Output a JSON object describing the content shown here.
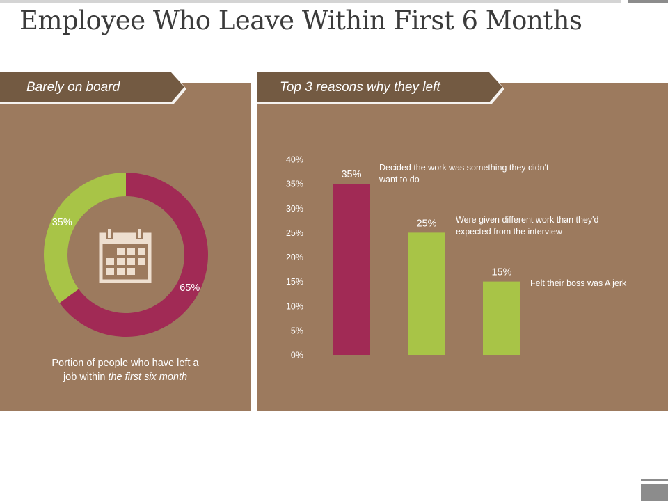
{
  "page": {
    "title": "Employee Who Leave Within First 6 Months"
  },
  "left_panel": {
    "banner": "Barely on board",
    "caption_line1": "Portion of people who have left a",
    "caption_line2_plain": "job within ",
    "caption_line2_italic": "the first six month",
    "icon": "calendar-icon"
  },
  "right_panel": {
    "banner": "Top 3 reasons why they left"
  },
  "colors": {
    "panel": "#9c7a5e",
    "banner": "#735a42",
    "crimson": "#a12a55",
    "green": "#a8c447",
    "icon": "#eedfd0"
  },
  "chart_data": [
    {
      "type": "pie",
      "variant": "donut",
      "slices": [
        {
          "label": "65%",
          "value": 65,
          "color": "#a12a55"
        },
        {
          "label": "35%",
          "value": 35,
          "color": "#a8c447"
        }
      ]
    },
    {
      "type": "bar",
      "categories": [
        "Decided the work was something they didn't want to do",
        "Were given different work than they'd expected from the interview",
        "Felt their boss was A jerk"
      ],
      "category_lines": [
        [
          "Decided the work was something they didn't",
          "want to do"
        ],
        [
          "Were given different work than they'd",
          "expected from the interview"
        ],
        [
          "Felt their boss was A jerk"
        ]
      ],
      "values": [
        35,
        25,
        15
      ],
      "value_labels": [
        "35%",
        "25%",
        "15%"
      ],
      "bar_colors": [
        "#a12a55",
        "#a8c447",
        "#a8c447"
      ],
      "ylim": [
        0,
        40
      ],
      "yticks": [
        "0%",
        "5%",
        "10%",
        "15%",
        "20%",
        "25%",
        "30%",
        "35%",
        "40%"
      ],
      "grid": false
    }
  ]
}
